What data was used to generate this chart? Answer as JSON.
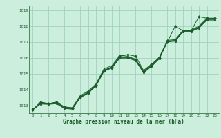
{
  "title": "Graphe pression niveau de la mer (hPa)",
  "bg_color": "#cceedd",
  "grid_color": "#99ccbb",
  "line_color": "#1a5c2a",
  "xlim": [
    -0.5,
    23.5
  ],
  "ylim": [
    1012.5,
    1019.3
  ],
  "yticks": [
    1013,
    1014,
    1015,
    1016,
    1017,
    1018,
    1019
  ],
  "xticks": [
    0,
    1,
    2,
    3,
    4,
    5,
    6,
    7,
    8,
    9,
    10,
    11,
    12,
    13,
    14,
    15,
    16,
    17,
    18,
    19,
    20,
    21,
    22,
    23
  ],
  "lines": [
    {
      "x": [
        0,
        1,
        2,
        3,
        4,
        5,
        6,
        7,
        8,
        9,
        10,
        11,
        12,
        13,
        14,
        15,
        16,
        17,
        18,
        19,
        20,
        21,
        22,
        23
      ],
      "y": [
        1012.7,
        1013.2,
        1013.1,
        1013.2,
        1012.9,
        1012.8,
        1013.5,
        1013.8,
        1014.3,
        1015.2,
        1015.4,
        1016.1,
        1016.2,
        1016.1,
        1015.2,
        1015.6,
        1016.0,
        1017.0,
        1018.0,
        1017.7,
        1017.7,
        1018.6,
        1018.5,
        1018.5
      ],
      "marker": "D"
    },
    {
      "x": [
        0,
        1,
        2,
        3,
        4,
        5,
        6,
        7,
        8,
        9,
        10,
        11,
        12,
        13,
        14,
        15,
        16,
        17,
        18,
        19,
        20,
        21,
        22,
        23
      ],
      "y": [
        1012.7,
        1013.2,
        1013.1,
        1013.2,
        1012.9,
        1012.85,
        1013.6,
        1013.9,
        1014.35,
        1015.3,
        1015.5,
        1016.15,
        1016.1,
        1015.9,
        1015.15,
        1015.55,
        1016.05,
        1017.1,
        1017.15,
        1017.75,
        1017.75,
        1018.0,
        1018.5,
        1018.5
      ],
      "marker": "^"
    },
    {
      "x": [
        0,
        1,
        2,
        3,
        4,
        5,
        6,
        7,
        8,
        9,
        10,
        11,
        12,
        13,
        14,
        15,
        16,
        17,
        18,
        19,
        20,
        21,
        22,
        23
      ],
      "y": [
        1012.7,
        1013.15,
        1013.1,
        1013.15,
        1012.85,
        1012.8,
        1013.55,
        1013.82,
        1014.28,
        1015.22,
        1015.42,
        1016.05,
        1016.05,
        1015.9,
        1015.1,
        1015.5,
        1016.0,
        1017.05,
        1017.1,
        1017.7,
        1017.7,
        1017.95,
        1018.45,
        1018.45
      ],
      "marker": "s"
    },
    {
      "x": [
        0,
        1,
        2,
        3,
        4,
        5,
        6,
        7,
        8,
        9,
        10,
        11,
        12,
        13,
        14,
        15,
        16,
        17,
        18,
        19,
        20,
        21,
        22,
        23
      ],
      "y": [
        1012.75,
        1013.1,
        1013.08,
        1013.12,
        1012.82,
        1012.78,
        1013.5,
        1013.78,
        1014.25,
        1015.18,
        1015.38,
        1016.0,
        1016.0,
        1015.85,
        1015.08,
        1015.48,
        1015.98,
        1017.02,
        1017.08,
        1017.68,
        1017.68,
        1017.92,
        1018.42,
        1018.42
      ],
      "marker": "v"
    },
    {
      "x": [
        0,
        1,
        2,
        3,
        4,
        5,
        6,
        7,
        8,
        9,
        10,
        11,
        12,
        13,
        14,
        15,
        16,
        17,
        18,
        19,
        20,
        21,
        22,
        23
      ],
      "y": [
        1012.72,
        1013.08,
        1013.06,
        1013.1,
        1012.8,
        1012.75,
        1013.48,
        1013.75,
        1014.22,
        1015.15,
        1015.35,
        1015.98,
        1015.98,
        1015.82,
        1015.05,
        1015.45,
        1015.95,
        1017.0,
        1017.05,
        1017.65,
        1017.65,
        1017.88,
        1018.38,
        1018.38
      ],
      "marker": "o"
    }
  ]
}
